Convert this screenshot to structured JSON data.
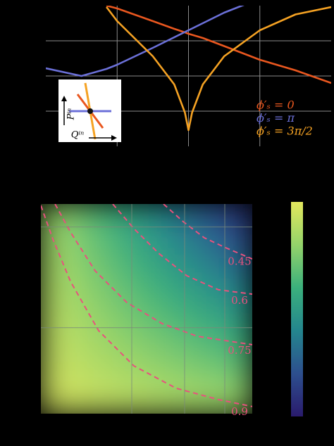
{
  "chart_data": [
    {
      "type": "line",
      "x": [
        -2,
        -1.5,
        -1.15,
        -1,
        -0.5,
        -0.2,
        -0.05,
        0,
        0.05,
        0.2,
        0.5,
        1,
        1.5,
        2
      ],
      "series": [
        {
          "name": "ϕ′ₛ = 0",
          "color": "#e9571f",
          "values": [
            null,
            null,
            4.0,
            3.92,
            3.56,
            3.34,
            3.24,
            3.2,
            3.17,
            3.08,
            2.85,
            2.46,
            2.16,
            1.8
          ]
        },
        {
          "name": "ϕ′ₛ = π",
          "color": "#6b70d8",
          "values": [
            2.22,
            2.0,
            2.2,
            2.32,
            2.8,
            3.1,
            3.25,
            3.3,
            3.35,
            3.5,
            3.8,
            4.2,
            null,
            null
          ]
        },
        {
          "name": "ϕ′ₛ = 3π/2",
          "color": "#f5a223",
          "values": [
            null,
            null,
            3.96,
            3.56,
            2.56,
            1.76,
            0.96,
            0.46,
            0.96,
            1.76,
            2.56,
            3.3,
            3.75,
            3.96
          ]
        }
      ],
      "xlim": [
        -2,
        2
      ],
      "xticks": [
        -1,
        0,
        1
      ],
      "ylim": [
        0,
        4
      ],
      "yticks": [
        1,
        2,
        3
      ],
      "grid": true,
      "legend": "lower right",
      "inset": {
        "y_label": "Pⁱⁿ",
        "x_label": "Qⁱⁿ"
      }
    },
    {
      "type": "heatmap",
      "xlim": [
        0,
        1
      ],
      "ylim": [
        0,
        1
      ],
      "xticks": [
        0.43,
        0.68,
        0.87
      ],
      "yticks": [
        0.41,
        0.89
      ],
      "grid": true,
      "zlim": [
        0.3,
        1.0
      ],
      "colormap": [
        "#2a1b6d",
        "#2d4f8e",
        "#24868e",
        "#3bb07c",
        "#94d36a",
        "#e3e75d"
      ],
      "z": [
        [
          0.87,
          0.799,
          0.728,
          0.657,
          0.586,
          0.515,
          0.444,
          0.373
        ],
        [
          0.885,
          0.822,
          0.759,
          0.696,
          0.633,
          0.57,
          0.507,
          0.444
        ],
        [
          0.899,
          0.845,
          0.79,
          0.735,
          0.68,
          0.625,
          0.57,
          0.515
        ],
        [
          0.914,
          0.867,
          0.82,
          0.774,
          0.727,
          0.68,
          0.633,
          0.586
        ],
        [
          0.929,
          0.89,
          0.851,
          0.812,
          0.774,
          0.735,
          0.696,
          0.657
        ],
        [
          0.944,
          0.913,
          0.882,
          0.851,
          0.82,
          0.79,
          0.759,
          0.728
        ],
        [
          0.958,
          0.936,
          0.913,
          0.89,
          0.867,
          0.845,
          0.822,
          0.799
        ],
        [
          0.973,
          0.958,
          0.944,
          0.929,
          0.914,
          0.899,
          0.885,
          0.87
        ]
      ],
      "contour_color": "#e8527e",
      "contours": [
        {
          "level": 0.45,
          "x": [
            0.58,
            0.673,
            0.773,
            0.873,
            1.0
          ],
          "y": [
            1.0,
            0.916,
            0.839,
            0.792,
            0.738
          ]
        },
        {
          "level": 0.6,
          "x": [
            0.34,
            0.44,
            0.557,
            0.69,
            0.84,
            1.0
          ],
          "y": [
            1.0,
            0.883,
            0.765,
            0.658,
            0.591,
            0.57
          ]
        },
        {
          "level": 0.75,
          "x": [
            0.067,
            0.14,
            0.257,
            0.407,
            0.573,
            0.74,
            1.0
          ],
          "y": [
            1.0,
            0.866,
            0.681,
            0.53,
            0.43,
            0.369,
            0.329
          ]
        },
        {
          "level": 0.9,
          "x": [
            0.0,
            0.057,
            0.14,
            0.273,
            0.44,
            0.64,
            0.84,
            1.0
          ],
          "y": [
            0.993,
            0.832,
            0.631,
            0.396,
            0.228,
            0.121,
            0.067,
            0.034
          ]
        }
      ]
    }
  ]
}
